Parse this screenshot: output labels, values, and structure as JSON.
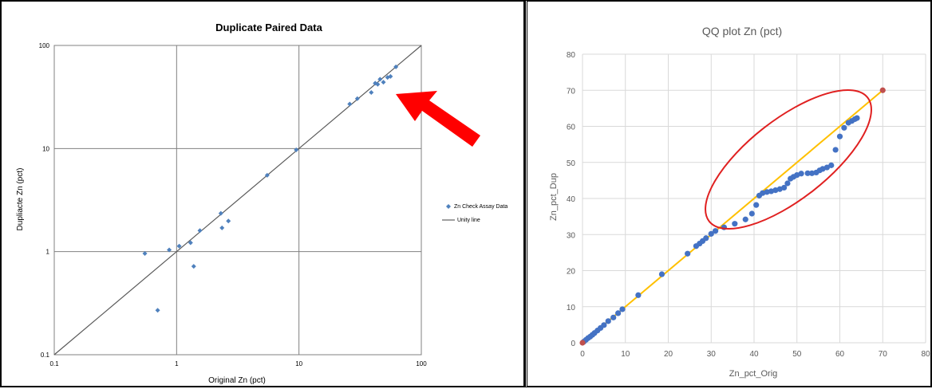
{
  "chart_data": [
    {
      "type": "scatter",
      "title": "Duplicate Paired Data",
      "xlabel": "Original Zn (pct)",
      "ylabel": "Dupliacte Zn (pct)",
      "xscale": "log",
      "yscale": "log",
      "xlim": [
        0.1,
        100
      ],
      "ylim": [
        0.1,
        100
      ],
      "x_ticks": [
        "0.1",
        "1",
        "10",
        "100"
      ],
      "y_ticks": [
        "0.1",
        "1",
        "10",
        "100"
      ],
      "grid": true,
      "legend": {
        "placement": "right",
        "entries": [
          "Zn Check Assay Data",
          "Unity line"
        ]
      },
      "series": [
        {
          "name": "Zn Check Assay Data",
          "color": "#4f81bd",
          "points": [
            [
              0.55,
              0.96
            ],
            [
              0.7,
              0.27
            ],
            [
              0.87,
              1.04
            ],
            [
              1.05,
              1.13
            ],
            [
              1.3,
              1.22
            ],
            [
              1.38,
              0.72
            ],
            [
              1.55,
              1.6
            ],
            [
              2.3,
              2.35
            ],
            [
              2.35,
              1.7
            ],
            [
              2.65,
              1.98
            ],
            [
              5.5,
              5.5
            ],
            [
              9.5,
              9.7
            ],
            [
              26,
              27
            ],
            [
              30,
              30.5
            ],
            [
              39,
              35
            ],
            [
              42,
              43
            ],
            [
              44,
              42
            ],
            [
              46,
              47
            ],
            [
              49,
              44
            ],
            [
              53,
              49
            ],
            [
              56,
              50
            ],
            [
              62,
              62
            ]
          ]
        },
        {
          "name": "Unity line",
          "color": "#595959",
          "line": [
            [
              0.1,
              0.1
            ],
            [
              100,
              100
            ]
          ]
        }
      ],
      "annotation": {
        "type": "arrow",
        "color": "#ff0000"
      }
    },
    {
      "type": "scatter",
      "title": "QQ plot Zn (pct)",
      "xlabel": "Zn_pct_Orig",
      "ylabel": "Zn_pct_Dup",
      "xlim": [
        0,
        80
      ],
      "ylim": [
        0,
        80
      ],
      "x_ticks": [
        "0",
        "10",
        "20",
        "30",
        "40",
        "50",
        "60",
        "70",
        "80"
      ],
      "y_ticks": [
        "0",
        "10",
        "20",
        "30",
        "40",
        "50",
        "60",
        "70",
        "80"
      ],
      "grid": true,
      "series": [
        {
          "name": "",
          "color": "#4472c4",
          "points": [
            [
              0.3,
              0.3
            ],
            [
              0.8,
              0.8
            ],
            [
              1.3,
              1.3
            ],
            [
              1.8,
              1.7
            ],
            [
              2.3,
              2.2
            ],
            [
              2.8,
              2.7
            ],
            [
              3.5,
              3.4
            ],
            [
              4.2,
              4.1
            ],
            [
              5,
              4.9
            ],
            [
              6,
              6
            ],
            [
              7.2,
              7
            ],
            [
              8.3,
              8.2
            ],
            [
              9.3,
              9.3
            ],
            [
              13,
              13.2
            ],
            [
              18.5,
              19
            ],
            [
              24.5,
              24.7
            ],
            [
              26.5,
              26.8
            ],
            [
              27.3,
              27.5
            ],
            [
              28,
              28.2
            ],
            [
              28.8,
              29
            ],
            [
              30,
              30.2
            ],
            [
              31,
              31
            ],
            [
              33,
              32
            ],
            [
              35.5,
              33
            ],
            [
              38,
              34.2
            ],
            [
              39.5,
              35.8
            ],
            [
              40.5,
              38.2
            ],
            [
              41.2,
              40.8
            ],
            [
              42,
              41.5
            ],
            [
              43,
              41.8
            ],
            [
              44,
              42
            ],
            [
              45,
              42.3
            ],
            [
              46,
              42.6
            ],
            [
              47,
              43
            ],
            [
              47.8,
              44.2
            ],
            [
              48.5,
              45.5
            ],
            [
              49.2,
              46
            ],
            [
              50,
              46.5
            ],
            [
              51,
              46.9
            ],
            [
              52.5,
              47
            ],
            [
              53.5,
              47
            ],
            [
              54.5,
              47.2
            ],
            [
              55.3,
              47.8
            ],
            [
              56,
              48.2
            ],
            [
              57,
              48.6
            ],
            [
              58,
              49.2
            ],
            [
              59,
              53.5
            ],
            [
              60,
              57.2
            ],
            [
              61,
              59.6
            ],
            [
              62,
              61
            ],
            [
              62.8,
              61.5
            ],
            [
              63.5,
              62
            ],
            [
              64,
              62.3
            ]
          ]
        },
        {
          "name": "",
          "color": "#ffc000",
          "line": [
            [
              0,
              0
            ],
            [
              70,
              70
            ]
          ]
        },
        {
          "name": "",
          "color": "#c0504d",
          "points": [
            [
              0,
              0
            ],
            [
              70,
              70
            ]
          ]
        }
      ],
      "annotation": {
        "type": "ellipse",
        "color": "#e02020"
      }
    }
  ]
}
